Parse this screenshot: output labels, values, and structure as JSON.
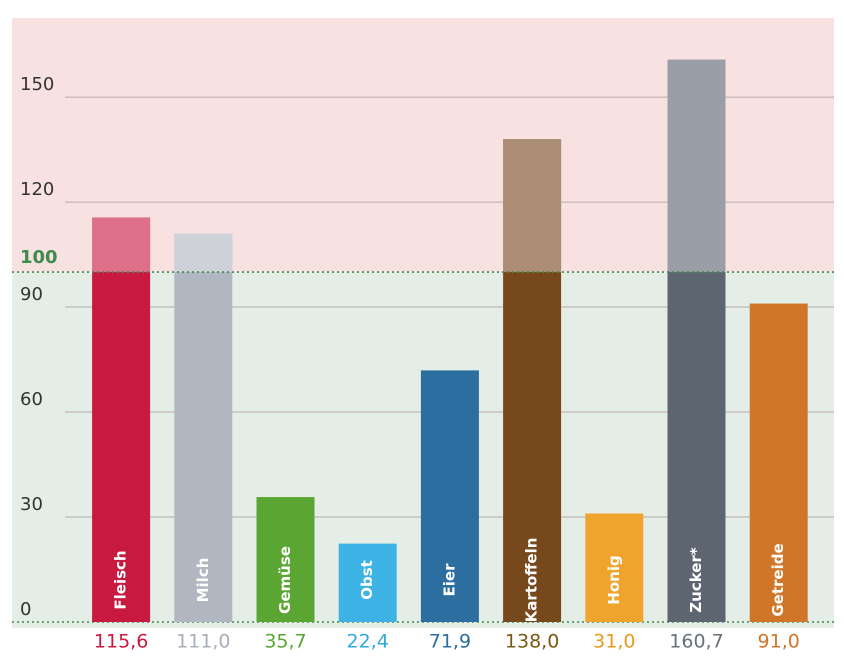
{
  "chart_data": {
    "type": "bar",
    "categories": [
      "Fleisch",
      "Milch",
      "Gemüse",
      "Obst",
      "Eier",
      "Kartoffeln",
      "Honig",
      "Zucker*",
      "Getreide"
    ],
    "values": [
      115.6,
      111.0,
      35.7,
      22.4,
      71.9,
      138.0,
      31.0,
      160.7,
      91.0
    ],
    "value_labels": [
      "115,6",
      "111,0",
      "35,7",
      "22,4",
      "71,9",
      "138,0",
      "31,0",
      "160,7",
      "91,0"
    ],
    "colors": [
      "#c8193f",
      "#b1b6c0",
      "#5ba632",
      "#3cb3e4",
      "#2b6e9f",
      "#77481c",
      "#f0a42e",
      "#5d6571",
      "#cf7629"
    ],
    "label_colors": [
      "#c8193f",
      "#a9aeb8",
      "#5ba632",
      "#2fa9dc",
      "#2b6e9f",
      "#7a5a12",
      "#e99a1e",
      "#6a707a",
      "#cf7629"
    ],
    "reference_line": 100,
    "ylim": [
      0,
      172.6
    ],
    "yticks": [
      0,
      30,
      60,
      90,
      120,
      150
    ],
    "grid": true
  }
}
